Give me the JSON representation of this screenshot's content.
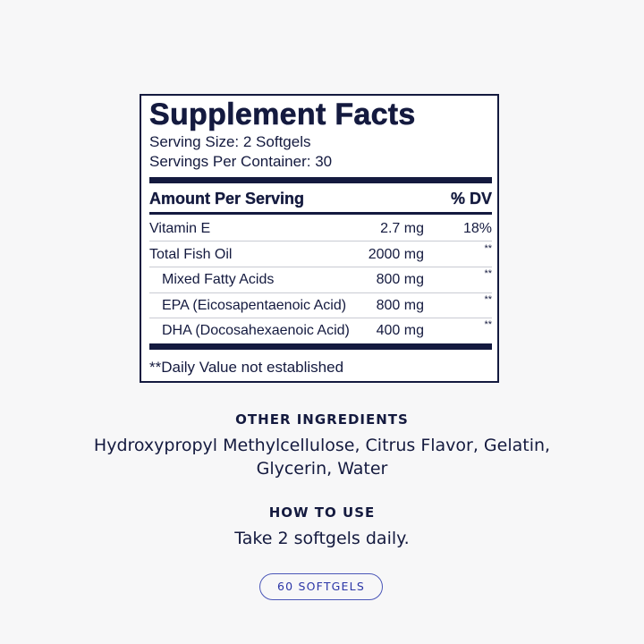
{
  "facts": {
    "title": "Supplement Facts",
    "serving_size": "Serving Size: 2 Softgels",
    "servings_per_container": "Servings Per Container: 30",
    "header_amount": "Amount Per Serving",
    "header_dv": "% DV",
    "rows": [
      {
        "name": "Vitamin E",
        "amount": "2.7 mg",
        "dv": "18%"
      },
      {
        "name": "Total Fish Oil",
        "amount": "2000 mg",
        "dv": "**"
      },
      {
        "name": "Mixed Fatty Acids",
        "amount": "800 mg",
        "dv": "**"
      },
      {
        "name": "EPA (Eicosapentaenoic Acid)",
        "amount": "800 mg",
        "dv": "**"
      },
      {
        "name": "DHA (Docosahexaenoic Acid)",
        "amount": "400 mg",
        "dv": "**"
      }
    ],
    "footnote": "**Daily Value not established"
  },
  "other_ingredients": {
    "heading": "OTHER INGREDIENTS",
    "line1": "Hydroxypropyl Methylcellulose, Citrus Flavor, Gelatin,",
    "line2": "Glycerin, Water"
  },
  "how_to_use": {
    "heading": "HOW TO USE",
    "text": "Take 2 softgels daily."
  },
  "badge": "60 SOFTGELS",
  "colors": {
    "navy": "#141a3f",
    "accent": "#2a35a6",
    "background": "#f7f7f8"
  }
}
